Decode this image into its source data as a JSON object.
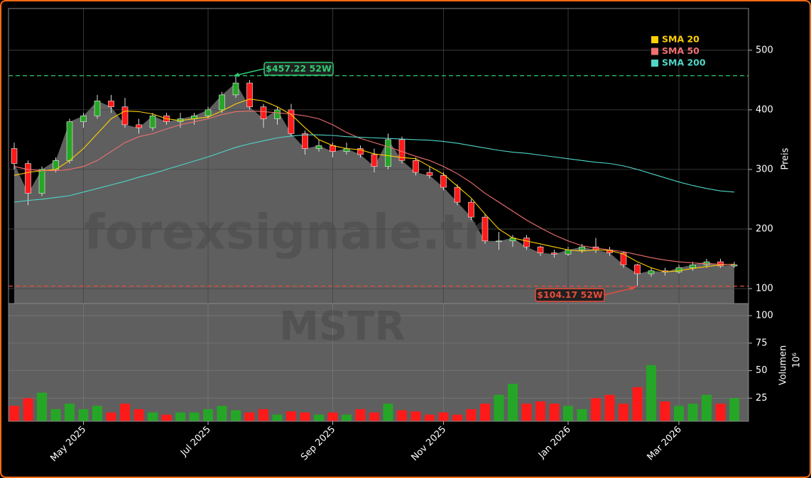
{
  "chart_data": {
    "type": "candlestick",
    "watermark": "forexsignale.tr",
    "symbol": "MSTR",
    "ylabel": "Preis",
    "ylim": [
      75,
      570
    ],
    "yticks": [
      100,
      200,
      300,
      400,
      500
    ],
    "grid": true,
    "up_color": "#26a626",
    "down_color": "#ff1a1a",
    "area_color": "#5f5f5f",
    "categories": [
      null,
      null,
      null,
      null,
      null,
      "May 2025",
      null,
      null,
      null,
      null,
      null,
      null,
      null,
      null,
      "Jul 2025",
      null,
      null,
      null,
      null,
      null,
      null,
      null,
      null,
      "Sep 2025",
      null,
      null,
      null,
      null,
      null,
      null,
      null,
      "Nov 2025",
      null,
      null,
      null,
      null,
      null,
      null,
      null,
      null,
      "Jan 2026",
      null,
      null,
      null,
      null,
      null,
      null,
      null,
      "Mar 2026",
      null,
      null,
      null,
      null
    ],
    "open": [
      335,
      310,
      260,
      300,
      315,
      380,
      390,
      415,
      405,
      375,
      370,
      390,
      380,
      385,
      390,
      400,
      425,
      445,
      405,
      385,
      400,
      360,
      335,
      340,
      330,
      335,
      325,
      305,
      350,
      315,
      295,
      290,
      270,
      245,
      220,
      180,
      180,
      185,
      170,
      160,
      158,
      165,
      170,
      165,
      160,
      140,
      125,
      130,
      128,
      135,
      140,
      145,
      138
    ],
    "high": [
      345,
      315,
      305,
      320,
      385,
      395,
      425,
      425,
      420,
      385,
      395,
      395,
      395,
      395,
      405,
      430,
      457.22,
      450,
      410,
      405,
      410,
      365,
      350,
      345,
      345,
      340,
      335,
      360,
      355,
      320,
      305,
      295,
      275,
      250,
      225,
      195,
      190,
      190,
      172,
      165,
      170,
      175,
      185,
      170,
      162,
      142,
      135,
      135,
      140,
      145,
      150,
      150,
      145
    ],
    "low": [
      300,
      240,
      255,
      295,
      310,
      370,
      385,
      395,
      370,
      360,
      365,
      375,
      370,
      375,
      385,
      395,
      420,
      400,
      370,
      375,
      355,
      325,
      330,
      320,
      325,
      320,
      295,
      300,
      310,
      290,
      285,
      265,
      240,
      215,
      175,
      165,
      170,
      165,
      155,
      152,
      155,
      160,
      160,
      155,
      135,
      104.17,
      120,
      122,
      125,
      130,
      135,
      135,
      135
    ],
    "close": [
      310,
      260,
      300,
      315,
      380,
      390,
      415,
      405,
      375,
      370,
      390,
      380,
      385,
      390,
      400,
      425,
      445,
      405,
      385,
      400,
      360,
      335,
      340,
      330,
      335,
      325,
      305,
      350,
      315,
      295,
      290,
      270,
      245,
      220,
      180,
      180,
      185,
      170,
      160,
      158,
      165,
      170,
      165,
      160,
      140,
      125,
      130,
      128,
      135,
      140,
      145,
      138,
      140
    ],
    "series": [
      {
        "name": "SMA 20",
        "color": "#ffd000",
        "values": [
          290,
          295,
          298,
          300,
          315,
          335,
          360,
          385,
          398,
          397,
          393,
          385,
          382,
          385,
          388,
          398,
          410,
          418,
          415,
          405,
          392,
          370,
          350,
          340,
          335,
          333,
          326,
          323,
          320,
          318,
          305,
          292,
          272,
          252,
          225,
          200,
          185,
          180,
          175,
          170,
          165,
          163,
          165,
          164,
          158,
          145,
          135,
          128,
          130,
          134,
          137,
          140,
          141
        ]
      },
      {
        "name": "SMA 50",
        "color": "#f07070",
        "values": [
          305,
          300,
          298,
          298,
          300,
          305,
          315,
          330,
          345,
          355,
          360,
          368,
          375,
          380,
          385,
          392,
          397,
          398,
          397,
          395,
          393,
          390,
          385,
          375,
          362,
          352,
          345,
          338,
          330,
          322,
          315,
          305,
          293,
          278,
          260,
          245,
          230,
          215,
          202,
          190,
          180,
          172,
          168,
          165,
          162,
          157,
          152,
          148,
          145,
          143,
          142,
          141,
          140
        ]
      },
      {
        "name": "SMA 200",
        "color": "#4fd6c8",
        "values": [
          245,
          248,
          250,
          253,
          256,
          262,
          268,
          274,
          280,
          287,
          293,
          300,
          307,
          314,
          321,
          329,
          337,
          343,
          348,
          353,
          356,
          358,
          358,
          357,
          355,
          354,
          353,
          352,
          351,
          350,
          349,
          347,
          344,
          340,
          336,
          332,
          329,
          327,
          324,
          321,
          318,
          315,
          312,
          310,
          306,
          300,
          293,
          286,
          279,
          273,
          268,
          264,
          262
        ]
      }
    ],
    "hlines": [
      {
        "value": 457.22,
        "label": "$457.22 52W",
        "color": "#2ecc71"
      },
      {
        "value": 104.17,
        "label": "$104.17 52W",
        "color": "#e74c3c"
      }
    ],
    "volume": {
      "ylabel": "Volumen",
      "multiplier": "10⁶",
      "ylim": [
        4,
        111
      ],
      "yticks": [
        25,
        50,
        75,
        100
      ],
      "values": [
        18,
        25,
        30,
        15,
        20,
        15,
        18,
        12,
        20,
        15,
        12,
        10,
        12,
        12,
        15,
        18,
        14,
        12,
        15,
        10,
        13,
        12,
        10,
        12,
        10,
        15,
        12,
        20,
        14,
        13,
        10,
        12,
        10,
        15,
        20,
        28,
        38,
        20,
        22,
        20,
        18,
        15,
        25,
        28,
        20,
        35,
        55,
        22,
        18,
        20,
        28,
        20,
        25
      ]
    }
  }
}
